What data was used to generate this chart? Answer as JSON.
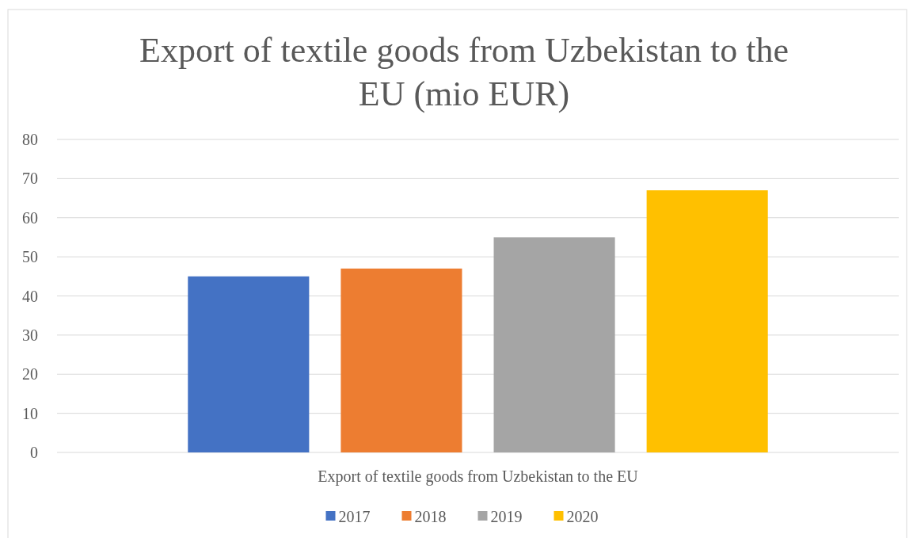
{
  "chart_data": {
    "type": "bar",
    "title": "Export of textile goods from Uzbekistan to the EU (mio EUR)",
    "categories": [
      "Export of textile goods from Uzbekistan to the EU"
    ],
    "series": [
      {
        "name": "2017",
        "color": "#4472c4",
        "values": [
          45
        ]
      },
      {
        "name": "2018",
        "color": "#ed7d31",
        "values": [
          47
        ]
      },
      {
        "name": "2019",
        "color": "#a5a5a5",
        "values": [
          55
        ]
      },
      {
        "name": "2020",
        "color": "#ffc000",
        "values": [
          67
        ]
      }
    ],
    "ylim": [
      0,
      80
    ],
    "yticks": [
      0,
      10,
      20,
      30,
      40,
      50,
      60,
      70,
      80
    ],
    "grid": "y",
    "legend": "bottom"
  }
}
